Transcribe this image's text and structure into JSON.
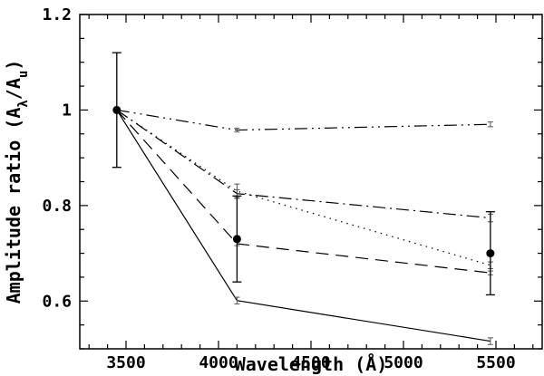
{
  "chart_data": {
    "type": "line",
    "title": "",
    "xlabel": "Wavelength (Å)",
    "ylabel": {
      "prefix": "Amplitude ratio (A",
      "sub1": "λ",
      "mid": "/A",
      "sub2": "u",
      "suffix": ")"
    },
    "xlim": [
      3250,
      5750
    ],
    "ylim": [
      0.5,
      1.2
    ],
    "xticks": [
      3500,
      4000,
      4500,
      5000,
      5500
    ],
    "xtick_labels": [
      "3500",
      "4000",
      "4500",
      "5000",
      "5500"
    ],
    "yticks": [
      0.6,
      0.8,
      1.0,
      1.2
    ],
    "ytick_labels": [
      "0.6",
      "0.8",
      "1",
      "1.2"
    ],
    "grid": false,
    "x": [
      3450,
      4100,
      5470
    ],
    "series": [
      {
        "style": "solid",
        "color": "#000000",
        "values": [
          1.0,
          0.601,
          0.516
        ],
        "errors": [
          0,
          0.007,
          0.007
        ]
      },
      {
        "style": "dashed",
        "color": "#000000",
        "values": [
          1.0,
          0.72,
          0.659
        ],
        "errors": [
          0,
          0.004,
          0.004
        ]
      },
      {
        "style": "dotted",
        "color": "#000000",
        "values": [
          1.0,
          0.83,
          0.675
        ],
        "errors": [
          0,
          0.015,
          0.007
        ]
      },
      {
        "style": "dash-dot",
        "color": "#000000",
        "values": [
          1.0,
          0.825,
          0.774
        ],
        "errors": [
          0,
          0.008,
          0.008
        ]
      },
      {
        "style": "dash-dot-dot",
        "color": "#000000",
        "values": [
          1.0,
          0.958,
          0.97
        ],
        "errors": [
          0,
          0.004,
          0.005
        ]
      },
      {
        "style": "points",
        "color": "#000000",
        "values": [
          1.0,
          0.73,
          0.7
        ],
        "errors": [
          0.12,
          0.09,
          0.087
        ]
      }
    ]
  }
}
